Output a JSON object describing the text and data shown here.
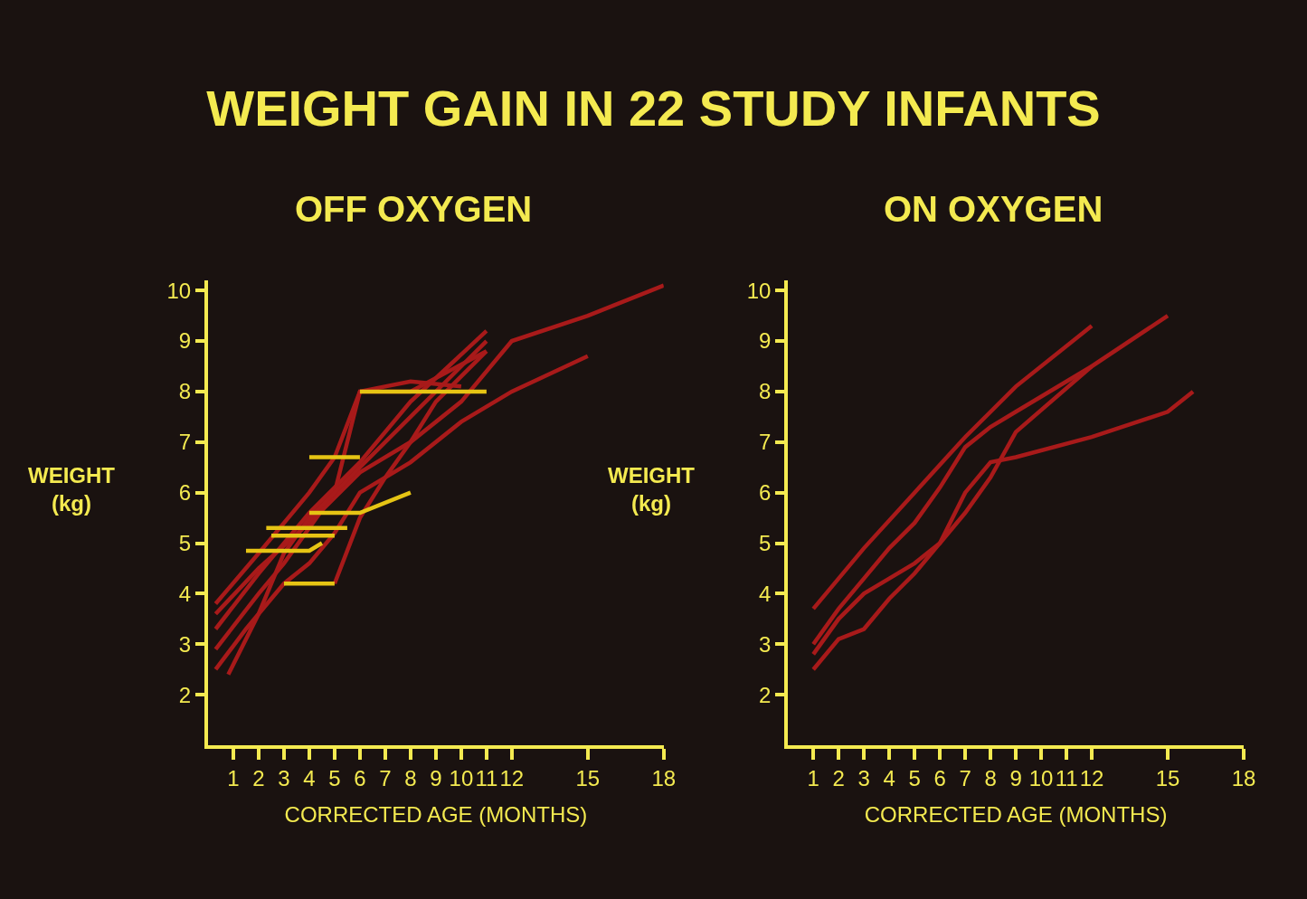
{
  "chart_data": [
    {
      "type": "line",
      "title": "WEIGHT GAIN IN 22 STUDY INFANTS",
      "subtitle": "OFF OXYGEN",
      "xlabel": "CORRECTED AGE (MONTHS)",
      "ylabel": "WEIGHT\n(kg)",
      "xlim": [
        0,
        18
      ],
      "ylim": [
        1,
        10.2
      ],
      "xticks": [
        1,
        2,
        3,
        4,
        5,
        6,
        7,
        8,
        9,
        10,
        11,
        12,
        15,
        18
      ],
      "yticks": [
        2,
        3,
        4,
        5,
        6,
        7,
        8,
        9,
        10
      ],
      "marker": "none",
      "grid": false,
      "series": [
        {
          "color": "#a81a1a",
          "x": [
            0.3,
            2,
            4,
            6,
            8,
            10,
            12,
            15,
            18
          ],
          "values": [
            3.6,
            4.5,
            5.4,
            6.4,
            7.0,
            7.8,
            9.0,
            9.5,
            10.1
          ]
        },
        {
          "color": "#a81a1a",
          "x": [
            0.3,
            2,
            4,
            6,
            8,
            11
          ],
          "values": [
            3.3,
            4.4,
            5.6,
            6.6,
            7.8,
            9.2
          ]
        },
        {
          "color": "#a81a1a",
          "x": [
            0.3,
            2,
            3,
            5,
            6,
            8,
            11
          ],
          "values": [
            2.9,
            4.0,
            4.6,
            6.0,
            8.0,
            8.0,
            8.8
          ]
        },
        {
          "color": "#a81a1a",
          "x": [
            0.3,
            1.5,
            3,
            4,
            5,
            6,
            8,
            10,
            12,
            15
          ],
          "values": [
            2.5,
            3.3,
            4.2,
            4.6,
            5.2,
            6.0,
            6.6,
            7.4,
            8.0,
            8.7
          ]
        },
        {
          "color": "#a81a1a",
          "x": [
            0.8,
            2,
            3,
            4,
            5,
            6,
            8,
            10,
            11
          ],
          "values": [
            2.4,
            3.6,
            4.8,
            5.5,
            6.0,
            6.5,
            7.5,
            8.5,
            9.0
          ]
        },
        {
          "color": "#a81a1a",
          "x": [
            0.3,
            2,
            4,
            5,
            6,
            8,
            10
          ],
          "values": [
            3.8,
            4.8,
            6.0,
            6.7,
            8.0,
            8.2,
            8.1
          ]
        },
        {
          "color": "#a81a1a",
          "x": [
            5,
            6,
            7,
            8,
            9,
            11
          ],
          "values": [
            4.2,
            5.5,
            6.3,
            7.0,
            7.8,
            8.8
          ]
        },
        {
          "color": "#e6c414",
          "x": [
            1.5,
            4,
            4.5
          ],
          "values": [
            4.85,
            4.85,
            5.0
          ]
        },
        {
          "color": "#e6c414",
          "x": [
            2.5,
            5
          ],
          "values": [
            5.15,
            5.15
          ]
        },
        {
          "color": "#e6c414",
          "x": [
            2.3,
            5.5
          ],
          "values": [
            5.3,
            5.3
          ]
        },
        {
          "color": "#e6c414",
          "x": [
            3,
            5
          ],
          "values": [
            4.2,
            4.2
          ]
        },
        {
          "color": "#e6c414",
          "x": [
            4,
            6
          ],
          "values": [
            6.7,
            6.7
          ]
        },
        {
          "color": "#e6c414",
          "x": [
            4,
            6,
            8
          ],
          "values": [
            5.6,
            5.6,
            6.0
          ]
        },
        {
          "color": "#e6c414",
          "x": [
            6,
            11
          ],
          "values": [
            8.0,
            8.0
          ]
        }
      ]
    },
    {
      "type": "line",
      "subtitle": "ON OXYGEN",
      "xlabel": "CORRECTED AGE (MONTHS)",
      "ylabel": "WEIGHT\n(kg)",
      "xlim": [
        0,
        18
      ],
      "ylim": [
        1,
        10.2
      ],
      "xticks": [
        1,
        2,
        3,
        4,
        5,
        6,
        7,
        8,
        9,
        10,
        11,
        12,
        15,
        18
      ],
      "yticks": [
        2,
        3,
        4,
        5,
        6,
        7,
        8,
        9,
        10
      ],
      "marker": "none",
      "grid": false,
      "series": [
        {
          "color": "#a81a1a",
          "x": [
            1,
            3,
            5,
            7,
            9,
            12
          ],
          "values": [
            3.7,
            4.9,
            6.0,
            7.1,
            8.1,
            9.3
          ]
        },
        {
          "color": "#a81a1a",
          "x": [
            1,
            2,
            3,
            4,
            5,
            6,
            7,
            8,
            9,
            10,
            12,
            15
          ],
          "values": [
            3.0,
            3.7,
            4.3,
            4.9,
            5.4,
            6.1,
            6.9,
            7.3,
            7.6,
            7.9,
            8.5,
            9.5
          ]
        },
        {
          "color": "#a81a1a",
          "x": [
            1,
            2,
            3,
            4,
            5,
            6,
            7,
            8,
            9,
            12
          ],
          "values": [
            2.8,
            3.5,
            4.0,
            4.3,
            4.6,
            5.0,
            5.6,
            6.3,
            7.2,
            8.5
          ]
        },
        {
          "color": "#a81a1a",
          "x": [
            1,
            2,
            3,
            4,
            5,
            6,
            7,
            8,
            9,
            12,
            15,
            16
          ],
          "values": [
            2.5,
            3.1,
            3.3,
            3.9,
            4.4,
            5.0,
            6.0,
            6.6,
            6.7,
            7.1,
            7.6,
            8.0
          ]
        }
      ]
    }
  ]
}
